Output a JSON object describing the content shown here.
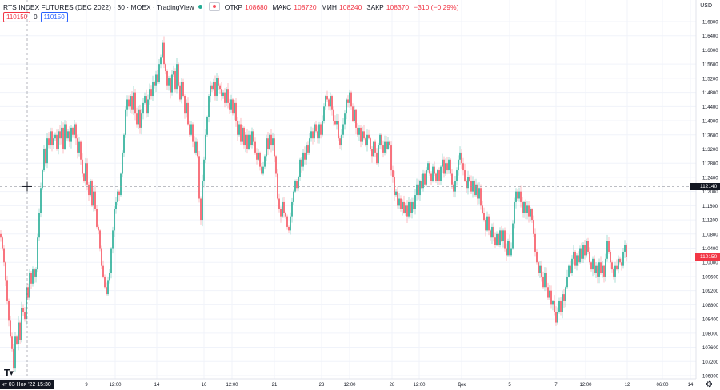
{
  "header": {
    "title": "RTS INDEX FUTURES (DEC 2022) · 30 · MOEX · TradingView",
    "open_label": "ОТКР",
    "open_value": "108680",
    "high_label": "МАКС",
    "high_value": "108720",
    "low_label": "МИН",
    "low_value": "108240",
    "close_label": "ЗАКР",
    "close_value": "108370",
    "change": "−310 (−0.29%)"
  },
  "trade": {
    "sell": "110150",
    "spread": "0",
    "buy": "110150"
  },
  "currency": "USD",
  "crosshair": {
    "time_label": "чт 03 Ноя '22  15:30",
    "price_label": "112140"
  },
  "last_price_label": "110150",
  "colors": {
    "up": "#22ab94",
    "down": "#f7525f",
    "grid": "#f0f3fa",
    "crosshair": "#9598a1"
  },
  "chart_data": {
    "type": "candlestick",
    "interval": "30",
    "y_axis": {
      "ticks": [
        116800,
        116400,
        116000,
        115600,
        115200,
        114800,
        114400,
        114000,
        113600,
        113200,
        112800,
        112400,
        112000,
        111600,
        111200,
        110800,
        110400,
        110000,
        109600,
        109200,
        108800,
        108400,
        108000,
        107600,
        107200,
        106800
      ]
    },
    "x_axis": {
      "ticks": [
        "9",
        "12:00",
        "14",
        "16",
        "12:00",
        "21",
        "23",
        "12:00",
        "28",
        "12:00",
        "Дек",
        "5",
        "7",
        "12:00",
        "12",
        "06:00",
        "14"
      ]
    },
    "close_path": [
      [
        0,
        110800
      ],
      [
        2,
        110600
      ],
      [
        4,
        110200
      ],
      [
        6,
        109800
      ],
      [
        8,
        109200
      ],
      [
        10,
        108600
      ],
      [
        12,
        108100
      ],
      [
        14,
        107700
      ],
      [
        16,
        107400
      ],
      [
        17,
        107000
      ],
      [
        19,
        107900
      ],
      [
        21,
        107700
      ],
      [
        23,
        108300
      ],
      [
        25,
        107800
      ],
      [
        27,
        108700
      ],
      [
        29,
        108600
      ],
      [
        31,
        108400
      ],
      [
        33,
        109300
      ],
      [
        35,
        109000
      ],
      [
        37,
        109700
      ],
      [
        39,
        109400
      ],
      [
        41,
        109800
      ],
      [
        43,
        109600
      ],
      [
        45,
        109800
      ],
      [
        47,
        110700
      ],
      [
        49,
        111400
      ],
      [
        51,
        112100
      ],
      [
        53,
        112600
      ],
      [
        55,
        113200
      ],
      [
        57,
        112800
      ],
      [
        59,
        113500
      ],
      [
        61,
        113300
      ],
      [
        63,
        113700
      ],
      [
        65,
        113300
      ],
      [
        67,
        113500
      ],
      [
        69,
        113600
      ],
      [
        71,
        113200
      ],
      [
        73,
        113700
      ],
      [
        75,
        113500
      ],
      [
        77,
        113800
      ],
      [
        79,
        113200
      ],
      [
        81,
        113900
      ],
      [
        83,
        113500
      ],
      [
        85,
        113700
      ],
      [
        87,
        113400
      ],
      [
        89,
        113800
      ],
      [
        91,
        113600
      ],
      [
        93,
        113900
      ],
      [
        95,
        113500
      ],
      [
        97,
        113100
      ],
      [
        99,
        113400
      ],
      [
        101,
        112900
      ],
      [
        103,
        112500
      ],
      [
        105,
        112300
      ],
      [
        107,
        112800
      ],
      [
        109,
        112200
      ],
      [
        111,
        111900
      ],
      [
        113,
        112300
      ],
      [
        115,
        111600
      ],
      [
        117,
        112000
      ],
      [
        119,
        111500
      ],
      [
        121,
        111000
      ],
      [
        123,
        110900
      ],
      [
        125,
        110400
      ],
      [
        127,
        109900
      ],
      [
        129,
        109600
      ],
      [
        131,
        109300
      ],
      [
        133,
        109100
      ],
      [
        135,
        109500
      ],
      [
        137,
        109700
      ],
      [
        139,
        110400
      ],
      [
        141,
        110900
      ],
      [
        143,
        111500
      ],
      [
        145,
        111700
      ],
      [
        147,
        112000
      ],
      [
        149,
        111900
      ],
      [
        151,
        112500
      ],
      [
        153,
        113100
      ],
      [
        155,
        113600
      ],
      [
        157,
        114300
      ],
      [
        159,
        114600
      ],
      [
        161,
        114400
      ],
      [
        163,
        114700
      ],
      [
        165,
        114300
      ],
      [
        167,
        114800
      ],
      [
        169,
        114200
      ],
      [
        171,
        113900
      ],
      [
        173,
        114300
      ],
      [
        175,
        113800
      ],
      [
        177,
        114200
      ],
      [
        179,
        114500
      ],
      [
        181,
        114700
      ],
      [
        183,
        114200
      ],
      [
        185,
        114600
      ],
      [
        187,
        114900
      ],
      [
        189,
        114700
      ],
      [
        191,
        115100
      ],
      [
        193,
        115000
      ],
      [
        195,
        115300
      ],
      [
        197,
        115100
      ],
      [
        199,
        115600
      ],
      [
        201,
        115800
      ],
      [
        203,
        116200
      ],
      [
        205,
        115600
      ],
      [
        207,
        115400
      ],
      [
        209,
        115000
      ],
      [
        211,
        115200
      ],
      [
        213,
        114800
      ],
      [
        215,
        115300
      ],
      [
        217,
        115400
      ],
      [
        219,
        114900
      ],
      [
        221,
        115600
      ],
      [
        223,
        115000
      ],
      [
        225,
        114600
      ],
      [
        227,
        115100
      ],
      [
        229,
        114700
      ],
      [
        231,
        114200
      ],
      [
        233,
        114500
      ],
      [
        235,
        113900
      ],
      [
        237,
        113600
      ],
      [
        239,
        113900
      ],
      [
        241,
        113400
      ],
      [
        243,
        113100
      ],
      [
        245,
        113400
      ],
      [
        247,
        113000
      ],
      [
        249,
        111800
      ],
      [
        251,
        111200
      ],
      [
        253,
        112300
      ],
      [
        255,
        112900
      ],
      [
        257,
        113600
      ],
      [
        259,
        114100
      ],
      [
        261,
        114700
      ],
      [
        263,
        115000
      ],
      [
        265,
        114900
      ],
      [
        267,
        115100
      ],
      [
        269,
        114700
      ],
      [
        271,
        115200
      ],
      [
        273,
        115000
      ],
      [
        275,
        114900
      ],
      [
        277,
        114700
      ],
      [
        279,
        114800
      ],
      [
        281,
        114500
      ],
      [
        283,
        114900
      ],
      [
        285,
        114500
      ],
      [
        287,
        114300
      ],
      [
        289,
        114600
      ],
      [
        291,
        114200
      ],
      [
        293,
        114500
      ],
      [
        295,
        114000
      ],
      [
        297,
        113600
      ],
      [
        299,
        113900
      ],
      [
        301,
        113400
      ],
      [
        303,
        113800
      ],
      [
        305,
        113300
      ],
      [
        307,
        113600
      ],
      [
        309,
        113200
      ],
      [
        311,
        113600
      ],
      [
        313,
        113300
      ],
      [
        315,
        113700
      ],
      [
        317,
        113400
      ],
      [
        319,
        113100
      ],
      [
        321,
        112900
      ],
      [
        323,
        113100
      ],
      [
        325,
        112700
      ],
      [
        327,
        112500
      ],
      [
        329,
        112700
      ],
      [
        331,
        113000
      ],
      [
        333,
        113500
      ],
      [
        335,
        113200
      ],
      [
        337,
        113600
      ],
      [
        339,
        113300
      ],
      [
        341,
        113500
      ],
      [
        343,
        113000
      ],
      [
        345,
        112500
      ],
      [
        347,
        111800
      ],
      [
        349,
        111500
      ],
      [
        351,
        111300
      ],
      [
        353,
        111700
      ],
      [
        355,
        111400
      ],
      [
        357,
        111300
      ],
      [
        359,
        111000
      ],
      [
        361,
        110900
      ],
      [
        363,
        111300
      ],
      [
        365,
        111700
      ],
      [
        367,
        112000
      ],
      [
        369,
        112300
      ],
      [
        371,
        112100
      ],
      [
        373,
        112400
      ],
      [
        375,
        112900
      ],
      [
        377,
        112700
      ],
      [
        379,
        113100
      ],
      [
        381,
        112900
      ],
      [
        383,
        113300
      ],
      [
        385,
        113100
      ],
      [
        387,
        113500
      ],
      [
        389,
        113700
      ],
      [
        391,
        113500
      ],
      [
        393,
        113900
      ],
      [
        395,
        113700
      ],
      [
        397,
        113500
      ],
      [
        399,
        113900
      ],
      [
        401,
        113600
      ],
      [
        403,
        114000
      ],
      [
        405,
        114400
      ],
      [
        407,
        114700
      ],
      [
        409,
        114600
      ],
      [
        411,
        114400
      ],
      [
        413,
        114700
      ],
      [
        415,
        114300
      ],
      [
        417,
        114000
      ],
      [
        419,
        113900
      ],
      [
        421,
        114000
      ],
      [
        423,
        113500
      ],
      [
        425,
        113300
      ],
      [
        427,
        113600
      ],
      [
        429,
        113900
      ],
      [
        431,
        114200
      ],
      [
        433,
        114600
      ],
      [
        435,
        114500
      ],
      [
        437,
        114800
      ],
      [
        439,
        114400
      ],
      [
        441,
        114000
      ],
      [
        443,
        114300
      ],
      [
        445,
        113800
      ],
      [
        447,
        113600
      ],
      [
        449,
        113800
      ],
      [
        451,
        113400
      ],
      [
        453,
        113700
      ],
      [
        455,
        113500
      ],
      [
        457,
        113300
      ],
      [
        459,
        113600
      ],
      [
        461,
        113500
      ],
      [
        463,
        113200
      ],
      [
        465,
        113000
      ],
      [
        467,
        113400
      ],
      [
        469,
        113100
      ],
      [
        471,
        112800
      ],
      [
        473,
        113300
      ],
      [
        475,
        113600
      ],
      [
        477,
        113300
      ],
      [
        479,
        113100
      ],
      [
        481,
        113400
      ],
      [
        483,
        113200
      ],
      [
        485,
        113400
      ],
      [
        487,
        113300
      ],
      [
        489,
        112600
      ],
      [
        491,
        112400
      ],
      [
        493,
        111900
      ],
      [
        495,
        112000
      ],
      [
        497,
        111600
      ],
      [
        499,
        111800
      ],
      [
        501,
        111500
      ],
      [
        503,
        111700
      ],
      [
        505,
        111400
      ],
      [
        507,
        111600
      ],
      [
        509,
        111300
      ],
      [
        511,
        111700
      ],
      [
        513,
        111400
      ],
      [
        515,
        111700
      ],
      [
        517,
        111500
      ],
      [
        519,
        111900
      ],
      [
        521,
        112200
      ],
      [
        523,
        111900
      ],
      [
        525,
        112300
      ],
      [
        527,
        112100
      ],
      [
        529,
        112500
      ],
      [
        531,
        112200
      ],
      [
        533,
        112600
      ],
      [
        535,
        112800
      ],
      [
        537,
        112500
      ],
      [
        539,
        112300
      ],
      [
        541,
        112700
      ],
      [
        543,
        112500
      ],
      [
        545,
        112300
      ],
      [
        547,
        112600
      ],
      [
        549,
        112300
      ],
      [
        551,
        112700
      ],
      [
        553,
        112900
      ],
      [
        555,
        112500
      ],
      [
        557,
        112800
      ],
      [
        559,
        112600
      ],
      [
        561,
        112900
      ],
      [
        563,
        112500
      ],
      [
        565,
        112200
      ],
      [
        567,
        112000
      ],
      [
        569,
        112300
      ],
      [
        571,
        112600
      ],
      [
        573,
        112900
      ],
      [
        575,
        113100
      ],
      [
        577,
        112800
      ],
      [
        579,
        112600
      ],
      [
        581,
        112300
      ],
      [
        583,
        112100
      ],
      [
        585,
        112400
      ],
      [
        587,
        112300
      ],
      [
        589,
        112000
      ],
      [
        591,
        112300
      ],
      [
        593,
        111900
      ],
      [
        595,
        112200
      ],
      [
        597,
        111800
      ],
      [
        599,
        112100
      ],
      [
        601,
        111600
      ],
      [
        603,
        111400
      ],
      [
        605,
        111200
      ],
      [
        607,
        110900
      ],
      [
        609,
        111300
      ],
      [
        611,
        110900
      ],
      [
        613,
        110700
      ],
      [
        615,
        111000
      ],
      [
        617,
        110700
      ],
      [
        619,
        110500
      ],
      [
        621,
        110800
      ],
      [
        623,
        110500
      ],
      [
        625,
        110900
      ],
      [
        627,
        110600
      ],
      [
        629,
        110900
      ],
      [
        631,
        110400
      ],
      [
        633,
        110200
      ],
      [
        635,
        110600
      ],
      [
        637,
        110200
      ],
      [
        639,
        110400
      ],
      [
        641,
        111100
      ],
      [
        643,
        111700
      ],
      [
        645,
        112000
      ],
      [
        647,
        111800
      ],
      [
        649,
        112000
      ],
      [
        651,
        111700
      ],
      [
        653,
        111400
      ],
      [
        655,
        111700
      ],
      [
        657,
        111400
      ],
      [
        659,
        111600
      ],
      [
        661,
        111300
      ],
      [
        663,
        111500
      ],
      [
        665,
        111200
      ],
      [
        667,
        110800
      ],
      [
        669,
        110300
      ],
      [
        671,
        110000
      ],
      [
        673,
        109700
      ],
      [
        675,
        109900
      ],
      [
        677,
        109600
      ],
      [
        679,
        109300
      ],
      [
        681,
        109700
      ],
      [
        683,
        109300
      ],
      [
        685,
        109000
      ],
      [
        687,
        109200
      ],
      [
        689,
        108800
      ],
      [
        691,
        108900
      ],
      [
        693,
        108600
      ],
      [
        695,
        108300
      ],
      [
        697,
        108600
      ],
      [
        699,
        108900
      ],
      [
        701,
        108600
      ],
      [
        703,
        109100
      ],
      [
        705,
        108900
      ],
      [
        707,
        109300
      ],
      [
        709,
        109600
      ],
      [
        711,
        109900
      ],
      [
        713,
        109700
      ],
      [
        715,
        110100
      ],
      [
        717,
        110300
      ],
      [
        719,
        109900
      ],
      [
        721,
        110200
      ],
      [
        723,
        110000
      ],
      [
        725,
        110400
      ],
      [
        727,
        110100
      ],
      [
        729,
        110500
      ],
      [
        731,
        110200
      ],
      [
        733,
        110600
      ],
      [
        735,
        110300
      ],
      [
        737,
        110000
      ],
      [
        739,
        109800
      ],
      [
        741,
        110100
      ],
      [
        743,
        109700
      ],
      [
        745,
        109900
      ],
      [
        747,
        109600
      ],
      [
        749,
        110000
      ],
      [
        751,
        109700
      ],
      [
        753,
        109900
      ],
      [
        755,
        109600
      ],
      [
        757,
        110100
      ],
      [
        759,
        110600
      ],
      [
        761,
        110300
      ],
      [
        763,
        110000
      ],
      [
        765,
        109800
      ],
      [
        767,
        109600
      ],
      [
        769,
        109900
      ],
      [
        771,
        109800
      ],
      [
        773,
        110100
      ],
      [
        775,
        110000
      ],
      [
        777,
        109900
      ],
      [
        779,
        110300
      ],
      [
        781,
        110500
      ],
      [
        783,
        110150
      ]
    ]
  }
}
